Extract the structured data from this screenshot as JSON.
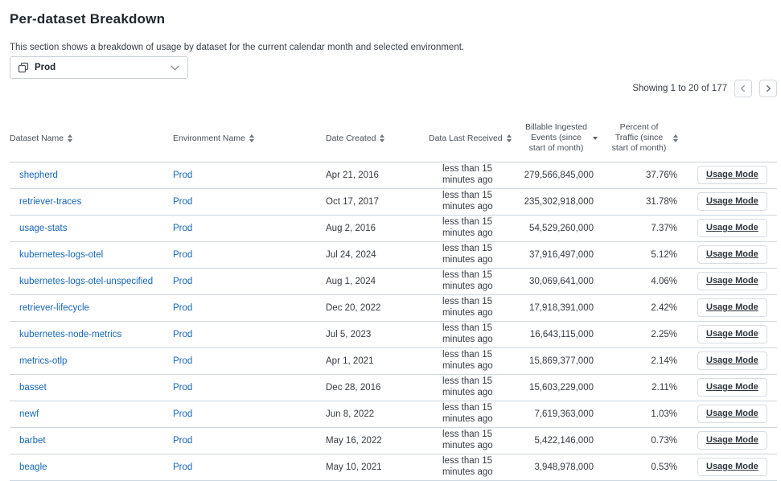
{
  "page": {
    "title": "Per-dataset Breakdown",
    "description": "This section shows a breakdown of usage by dataset for the current calendar month and selected environment."
  },
  "environment_picker": {
    "selected": "Prod",
    "icon": "environments-icon",
    "chevron": "chevron-down-icon"
  },
  "pagination": {
    "summary": "Showing 1 to 20 of 177",
    "prev_icon": "chevron-left-icon",
    "next_icon": "chevron-right-icon"
  },
  "colors": {
    "link_blue": "#1566bb",
    "row_border": "#ccd7e0",
    "header_text": "#454f59"
  },
  "table": {
    "columns": [
      {
        "label": "Dataset Name",
        "sort": "both"
      },
      {
        "label": "Environment Name",
        "sort": "both"
      },
      {
        "label": "Date Created",
        "sort": "both"
      },
      {
        "label": "Data Last Received",
        "sort": "both"
      },
      {
        "label": "Billable Ingested Events (since start of month)",
        "sort": "desc"
      },
      {
        "label": "Percent of Traffic (since start of month)",
        "sort": "both"
      },
      {
        "label": "",
        "sort": "none"
      }
    ],
    "action_label": "Usage Mode",
    "rows": [
      {
        "dataset": "shepherd",
        "environment": "Prod",
        "date_created": "Apr 21, 2016",
        "last_received": "less than 15 minutes ago",
        "billable_events": "279,566,845,000",
        "percent_traffic": "37.76%"
      },
      {
        "dataset": "retriever-traces",
        "environment": "Prod",
        "date_created": "Oct 17, 2017",
        "last_received": "less than 15 minutes ago",
        "billable_events": "235,302,918,000",
        "percent_traffic": "31.78%"
      },
      {
        "dataset": "usage-stats",
        "environment": "Prod",
        "date_created": "Aug 2, 2016",
        "last_received": "less than 15 minutes ago",
        "billable_events": "54,529,260,000",
        "percent_traffic": "7.37%"
      },
      {
        "dataset": "kubernetes-logs-otel",
        "environment": "Prod",
        "date_created": "Jul 24, 2024",
        "last_received": "less than 15 minutes ago",
        "billable_events": "37,916,497,000",
        "percent_traffic": "5.12%"
      },
      {
        "dataset": "kubernetes-logs-otel-unspecified",
        "environment": "Prod",
        "date_created": "Aug 1, 2024",
        "last_received": "less than 15 minutes ago",
        "billable_events": "30,069,641,000",
        "percent_traffic": "4.06%"
      },
      {
        "dataset": "retriever-lifecycle",
        "environment": "Prod",
        "date_created": "Dec 20, 2022",
        "last_received": "less than 15 minutes ago",
        "billable_events": "17,918,391,000",
        "percent_traffic": "2.42%"
      },
      {
        "dataset": "kubernetes-node-metrics",
        "environment": "Prod",
        "date_created": "Jul 5, 2023",
        "last_received": "less than 15 minutes ago",
        "billable_events": "16,643,115,000",
        "percent_traffic": "2.25%"
      },
      {
        "dataset": "metrics-otlp",
        "environment": "Prod",
        "date_created": "Apr 1, 2021",
        "last_received": "less than 15 minutes ago",
        "billable_events": "15,869,377,000",
        "percent_traffic": "2.14%"
      },
      {
        "dataset": "basset",
        "environment": "Prod",
        "date_created": "Dec 28, 2016",
        "last_received": "less than 15 minutes ago",
        "billable_events": "15,603,229,000",
        "percent_traffic": "2.11%"
      },
      {
        "dataset": "newf",
        "environment": "Prod",
        "date_created": "Jun 8, 2022",
        "last_received": "less than 15 minutes ago",
        "billable_events": "7,619,363,000",
        "percent_traffic": "1.03%"
      },
      {
        "dataset": "barbet",
        "environment": "Prod",
        "date_created": "May 16, 2022",
        "last_received": "less than 15 minutes ago",
        "billable_events": "5,422,146,000",
        "percent_traffic": "0.73%"
      },
      {
        "dataset": "beagle",
        "environment": "Prod",
        "date_created": "May 10, 2021",
        "last_received": "less than 15 minutes ago",
        "billable_events": "3,948,978,000",
        "percent_traffic": "0.53%"
      }
    ]
  }
}
